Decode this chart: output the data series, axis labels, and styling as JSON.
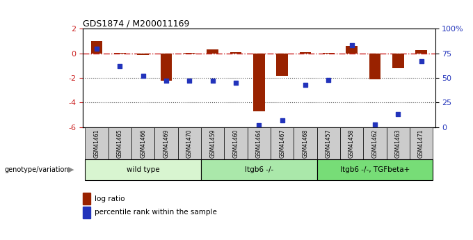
{
  "title": "GDS1874 / M200011169",
  "samples": [
    "GSM41461",
    "GSM41465",
    "GSM41466",
    "GSM41469",
    "GSM41470",
    "GSM41459",
    "GSM41460",
    "GSM41464",
    "GSM41467",
    "GSM41468",
    "GSM41457",
    "GSM41458",
    "GSM41462",
    "GSM41463",
    "GSM41471"
  ],
  "log_ratio": [
    1.0,
    0.05,
    -0.12,
    -2.2,
    0.05,
    0.35,
    0.08,
    -4.7,
    -1.8,
    0.1,
    0.05,
    0.6,
    -2.1,
    -1.2,
    0.25
  ],
  "percentile_rank": [
    80,
    62,
    52,
    47,
    47,
    47,
    45,
    2,
    7,
    43,
    48,
    83,
    3,
    13,
    67
  ],
  "groups": [
    {
      "label": "wild type",
      "start": 0,
      "end": 5,
      "color": "#d8f5d0"
    },
    {
      "label": "Itgb6 -/-",
      "start": 5,
      "end": 10,
      "color": "#aae8aa"
    },
    {
      "label": "Itgb6 -/-, TGFbeta+",
      "start": 10,
      "end": 15,
      "color": "#77dd77"
    }
  ],
  "ylim_left": [
    -6,
    2
  ],
  "ylim_right": [
    0,
    100
  ],
  "left_yticks": [
    -6,
    -4,
    -2,
    0,
    2
  ],
  "right_yticks": [
    0,
    25,
    50,
    75,
    100
  ],
  "right_yticklabels": [
    "0",
    "25",
    "50",
    "75",
    "100%"
  ],
  "bar_color": "#992200",
  "dot_color": "#2233bb",
  "hline_color": "#cc2222",
  "dotline_color": "#555555",
  "bg_color": "#ffffff",
  "tick_bg_color": "#cccccc",
  "legend_bar_label": "log ratio",
  "legend_dot_label": "percentile rank within the sample",
  "genotype_label": "genotype/variation",
  "left_ytick_color": "#cc2222",
  "title_fontsize": 9,
  "bar_width": 0.5
}
